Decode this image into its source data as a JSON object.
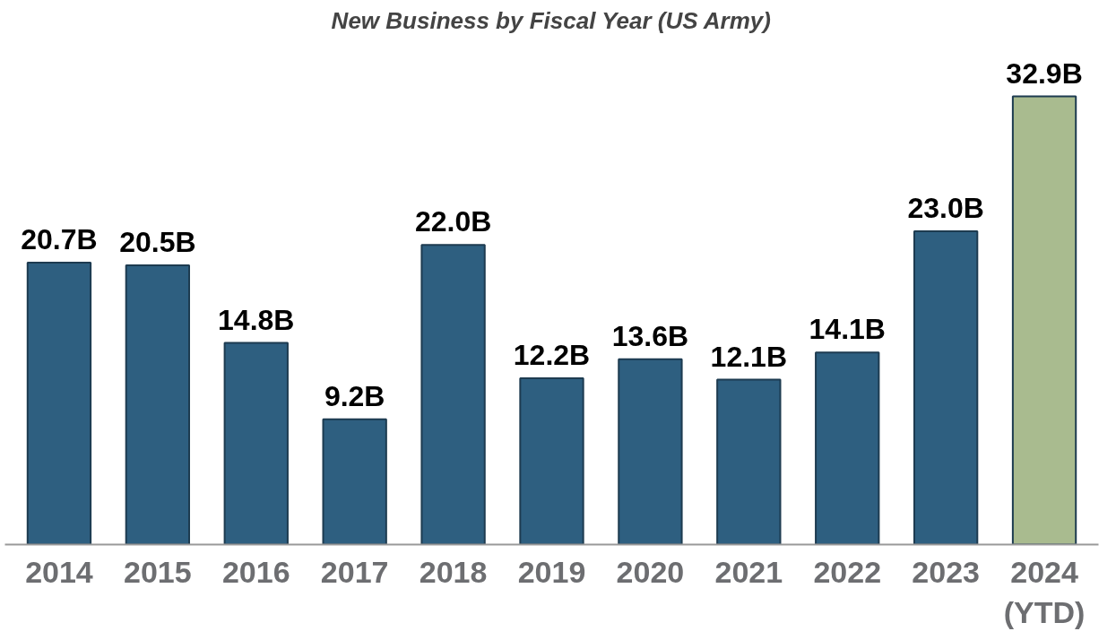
{
  "chart_data": {
    "type": "bar",
    "title": "New Business by Fiscal Year (US Army)",
    "categories": [
      "2014",
      "2015",
      "2016",
      "2017",
      "2018",
      "2019",
      "2020",
      "2021",
      "2022",
      "2023",
      "2024\n(YTD)"
    ],
    "values": [
      20.7,
      20.5,
      14.8,
      9.2,
      22.0,
      12.2,
      13.6,
      12.1,
      14.1,
      23.0,
      32.9
    ],
    "colors": [
      "#2e5f80",
      "#2e5f80",
      "#2e5f80",
      "#2e5f80",
      "#2e5f80",
      "#2e5f80",
      "#2e5f80",
      "#2e5f80",
      "#2e5f80",
      "#2e5f80",
      "#a9bb8f"
    ],
    "value_labels": [
      "20.7B",
      "20.5B",
      "14.8B",
      "9.2B",
      "22.0B",
      "12.2B",
      "13.6B",
      "12.1B",
      "14.1B",
      "23.0B",
      "32.9B"
    ],
    "grid": false
  }
}
